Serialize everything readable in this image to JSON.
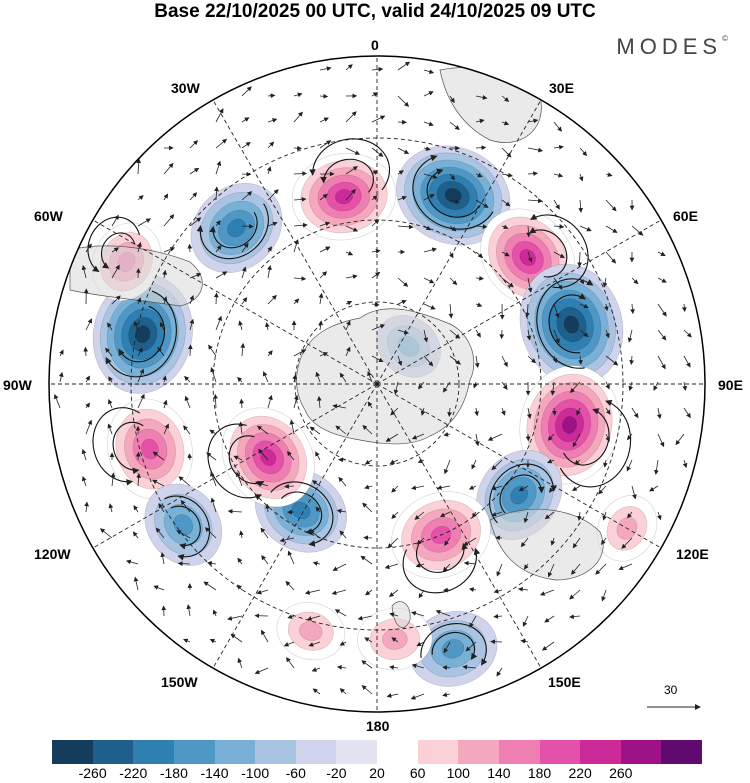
{
  "title": "Base 22/10/2025 00 UTC, valid 24/10/2025 09 UTC",
  "brand": "MODES",
  "brand_mark": "©",
  "longitude_labels": {
    "0": "0",
    "30e": "30E",
    "60e": "60E",
    "90e": "90E",
    "120e": "120E",
    "150e": "150E",
    "180": "180",
    "150w": "150W",
    "120w": "120W",
    "90w": "90W",
    "60w": "60W",
    "30w": "30W"
  },
  "vector_scale_label": "30",
  "colorbar": {
    "ticks": [
      "-260",
      "-220",
      "-180",
      "-140",
      "-100",
      "-60",
      "-20",
      "20",
      "60",
      "100",
      "140",
      "180",
      "220",
      "260"
    ],
    "colors": [
      "#143c5c",
      "#1f5f8c",
      "#2f7fb2",
      "#4f98c6",
      "#79b0d6",
      "#a8c4e2",
      "#cfd3ec",
      "#e3e3f2",
      "#ffffff",
      "#fbd0d6",
      "#f5a8bd",
      "#ef7fb2",
      "#e551a8",
      "#cc2a98",
      "#9e1287",
      "#5e0a6e"
    ]
  },
  "anomaly_centers": [
    {
      "lon": -42,
      "colat": 0.64,
      "value": -160
    },
    {
      "lon": -10,
      "colat": 0.58,
      "value": 180
    },
    {
      "lon": 22,
      "colat": 0.62,
      "value": -220
    },
    {
      "lon": 50,
      "colat": 0.6,
      "value": 180
    },
    {
      "lon": 73,
      "colat": 0.62,
      "value": -240
    },
    {
      "lon": 102,
      "colat": 0.6,
      "value": 230
    },
    {
      "lon": 128,
      "colat": 0.55,
      "value": -150
    },
    {
      "lon": 157,
      "colat": 0.5,
      "value": 170
    },
    {
      "lon": 164,
      "colat": 0.84,
      "value": -130
    },
    {
      "lon": -149,
      "colat": 0.45,
      "value": -150
    },
    {
      "lon": -124,
      "colat": 0.4,
      "value": 180
    },
    {
      "lon": -106,
      "colat": 0.72,
      "value": 170
    },
    {
      "lon": -126,
      "colat": 0.73,
      "value": -120
    },
    {
      "lon": -78,
      "colat": 0.73,
      "value": -230
    },
    {
      "lon": -64,
      "colat": 0.85,
      "value": 100
    },
    {
      "lon": 176,
      "colat": 0.78,
      "value": 80
    },
    {
      "lon": -165,
      "colat": 0.78,
      "value": 60
    },
    {
      "lon": 40,
      "colat": 0.15,
      "value": -60
    },
    {
      "lon": 120,
      "colat": 0.88,
      "value": 60
    }
  ]
}
